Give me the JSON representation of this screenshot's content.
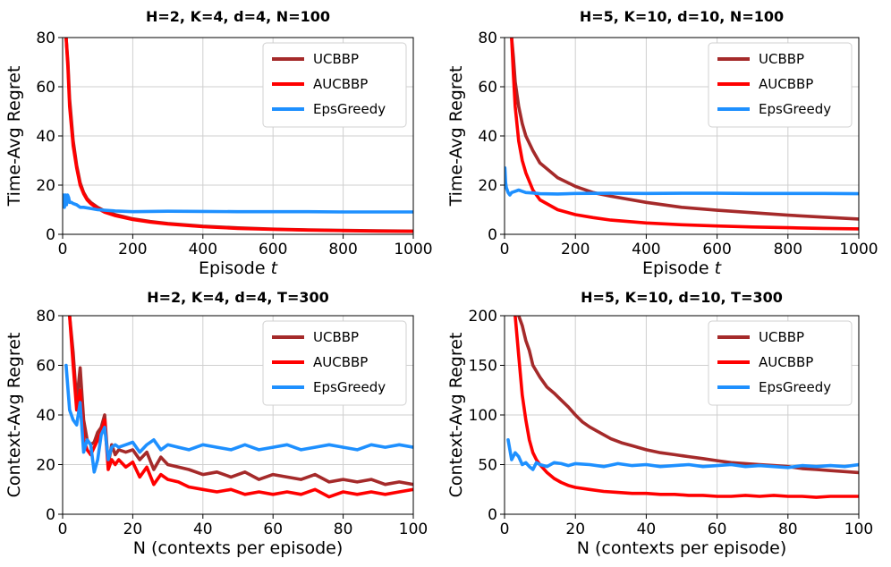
{
  "colors": {
    "UCBBP": "#a52a2a",
    "AUCBBP": "#ff0000",
    "EpsGreedy": "#1e90ff"
  },
  "chart_data": [
    {
      "type": "line",
      "title": "H=2, K=4, d=4, N=100",
      "xlabel": "Episode",
      "xlabel_var": "t",
      "ylabel": "Time-Avg Regret",
      "xlim": [
        0,
        1000
      ],
      "ylim": [
        0,
        80
      ],
      "xticks": [
        0,
        200,
        400,
        600,
        800,
        1000
      ],
      "yticks": [
        0,
        20,
        40,
        60,
        80
      ],
      "legend_pos": "top-right",
      "series": [
        {
          "name": "UCBBP",
          "x": [
            10,
            15,
            20,
            30,
            40,
            50,
            60,
            70,
            80,
            100,
            120,
            150,
            200,
            250,
            300,
            400,
            500,
            600,
            700,
            800,
            900,
            1000
          ],
          "y": [
            80,
            70,
            55,
            38,
            28,
            21,
            17,
            14.5,
            13,
            11,
            9.5,
            8,
            6.3,
            5.2,
            4.4,
            3.3,
            2.6,
            2.1,
            1.8,
            1.6,
            1.4,
            1.3
          ]
        },
        {
          "name": "AUCBBP",
          "x": [
            10,
            15,
            20,
            30,
            40,
            50,
            60,
            70,
            80,
            100,
            120,
            150,
            200,
            250,
            300,
            400,
            500,
            600,
            700,
            800,
            900,
            1000
          ],
          "y": [
            80,
            68,
            52,
            36,
            27,
            20,
            16.5,
            14,
            12.5,
            10.5,
            9,
            7.6,
            6,
            5,
            4.2,
            3.1,
            2.4,
            2,
            1.7,
            1.5,
            1.3,
            1.2
          ]
        },
        {
          "name": "EpsGreedy",
          "x": [
            2,
            5,
            8,
            11,
            14,
            17,
            20,
            25,
            30,
            40,
            50,
            60,
            80,
            100,
            150,
            200,
            250,
            300,
            400,
            500,
            600,
            700,
            800,
            900,
            1000
          ],
          "y": [
            16,
            11,
            16,
            12,
            16,
            15,
            13,
            13,
            12.5,
            12,
            11,
            11,
            10.5,
            10,
            9.5,
            9.2,
            9.3,
            9.4,
            9.3,
            9.2,
            9.2,
            9.2,
            9.1,
            9.1,
            9.1
          ]
        }
      ]
    },
    {
      "type": "line",
      "title": "H=5, K=10, d=10, N=100",
      "xlabel": "Episode",
      "xlabel_var": "t",
      "ylabel": "Time-Avg Regret",
      "xlim": [
        0,
        1000
      ],
      "ylim": [
        0,
        80
      ],
      "xticks": [
        0,
        200,
        400,
        600,
        800,
        1000
      ],
      "yticks": [
        0,
        20,
        40,
        60,
        80
      ],
      "legend_pos": "top-right",
      "series": [
        {
          "name": "UCBBP",
          "x": [
            20,
            25,
            30,
            40,
            50,
            60,
            80,
            100,
            150,
            200,
            250,
            300,
            400,
            500,
            600,
            700,
            800,
            900,
            1000
          ],
          "y": [
            80,
            72,
            62,
            52,
            45,
            40,
            34,
            29,
            23,
            19.5,
            17,
            15.5,
            13,
            11,
            9.8,
            8.8,
            7.8,
            7,
            6.2
          ]
        },
        {
          "name": "AUCBBP",
          "x": [
            20,
            25,
            30,
            40,
            50,
            60,
            80,
            100,
            150,
            200,
            250,
            300,
            400,
            500,
            600,
            700,
            800,
            900,
            1000
          ],
          "y": [
            80,
            65,
            52,
            38,
            30,
            25,
            18,
            14,
            10,
            8,
            6.8,
            5.8,
            4.6,
            3.9,
            3.4,
            3,
            2.7,
            2.4,
            2.2
          ]
        },
        {
          "name": "EpsGreedy",
          "x": [
            1,
            3,
            5,
            10,
            15,
            20,
            30,
            40,
            50,
            60,
            80,
            100,
            150,
            200,
            300,
            400,
            500,
            600,
            700,
            800,
            900,
            1000
          ],
          "y": [
            27,
            21,
            19,
            17,
            16,
            17,
            17.5,
            18,
            17.5,
            17,
            16.8,
            16.5,
            16.4,
            16.6,
            16.7,
            16.6,
            16.7,
            16.7,
            16.6,
            16.6,
            16.6,
            16.5
          ]
        }
      ]
    },
    {
      "type": "line",
      "title": "H=2, K=4, d=4, T=300",
      "xlabel": "N (contexts per episode)",
      "ylabel": "Context-Avg Regret",
      "xlim": [
        0,
        100
      ],
      "ylim": [
        0,
        80
      ],
      "xticks": [
        0,
        20,
        40,
        60,
        80,
        100
      ],
      "yticks": [
        0,
        20,
        40,
        60,
        80
      ],
      "legend_pos": "top-right",
      "series": [
        {
          "name": "UCBBP",
          "x": [
            2,
            3,
            4,
            5,
            6,
            7,
            8,
            9,
            10,
            11,
            12,
            13,
            14,
            15,
            16,
            18,
            20,
            22,
            24,
            26,
            28,
            30,
            33,
            36,
            40,
            44,
            48,
            52,
            56,
            60,
            64,
            68,
            72,
            76,
            80,
            84,
            88,
            92,
            96,
            100
          ],
          "y": [
            80,
            65,
            45,
            59,
            38,
            30,
            28,
            29,
            33,
            35,
            40,
            20,
            28,
            24,
            26,
            25,
            26,
            22,
            25,
            18,
            23,
            20,
            19,
            18,
            16,
            17,
            15,
            17,
            14,
            16,
            15,
            14,
            16,
            13,
            14,
            13,
            14,
            12,
            13,
            12
          ]
        },
        {
          "name": "AUCBBP",
          "x": [
            2,
            3,
            4,
            5,
            6,
            7,
            8,
            9,
            10,
            11,
            12,
            13,
            14,
            15,
            16,
            18,
            20,
            22,
            24,
            26,
            28,
            30,
            33,
            36,
            40,
            44,
            48,
            52,
            56,
            60,
            64,
            68,
            72,
            76,
            80,
            84,
            88,
            92,
            96,
            100
          ],
          "y": [
            80,
            60,
            42,
            50,
            30,
            26,
            24,
            27,
            30,
            33,
            38,
            18,
            22,
            20,
            22,
            19,
            21,
            15,
            19,
            12,
            16,
            14,
            13,
            11,
            10,
            9,
            10,
            8,
            9,
            8,
            9,
            8,
            10,
            7,
            9,
            8,
            9,
            8,
            9,
            10
          ]
        },
        {
          "name": "EpsGreedy",
          "x": [
            1,
            2,
            3,
            4,
            5,
            6,
            7,
            8,
            9,
            10,
            11,
            12,
            13,
            14,
            15,
            16,
            18,
            20,
            22,
            24,
            26,
            28,
            30,
            33,
            36,
            40,
            44,
            48,
            52,
            56,
            60,
            64,
            68,
            72,
            76,
            80,
            84,
            88,
            92,
            96,
            100
          ],
          "y": [
            60,
            42,
            38,
            36,
            45,
            25,
            30,
            28,
            17,
            22,
            32,
            35,
            22,
            27,
            28,
            27,
            28,
            29,
            25,
            28,
            30,
            26,
            28,
            27,
            26,
            28,
            27,
            26,
            28,
            26,
            27,
            28,
            26,
            27,
            28,
            27,
            26,
            28,
            27,
            28,
            27
          ]
        }
      ]
    },
    {
      "type": "line",
      "title": "H=5, K=10, d=10, T=300",
      "xlabel": "N (contexts per episode)",
      "ylabel": "Context-Avg Regret",
      "xlim": [
        0,
        100
      ],
      "ylim": [
        0,
        200
      ],
      "xticks": [
        0,
        20,
        40,
        60,
        80,
        100
      ],
      "yticks": [
        0,
        50,
        100,
        150,
        200
      ],
      "legend_pos": "top-right",
      "series": [
        {
          "name": "UCBBP",
          "x": [
            4,
            5,
            6,
            7,
            8,
            10,
            12,
            14,
            16,
            18,
            20,
            22,
            24,
            26,
            28,
            30,
            33,
            36,
            40,
            44,
            48,
            52,
            56,
            60,
            64,
            68,
            72,
            76,
            80,
            84,
            88,
            92,
            96,
            100
          ],
          "y": [
            200,
            190,
            175,
            165,
            150,
            138,
            128,
            122,
            115,
            108,
            100,
            93,
            88,
            84,
            80,
            76,
            72,
            69,
            65,
            62,
            60,
            58,
            56,
            54,
            52,
            51,
            50,
            49,
            48,
            46,
            45,
            44,
            43,
            42
          ]
        },
        {
          "name": "AUCBBP",
          "x": [
            3,
            4,
            5,
            6,
            7,
            8,
            9,
            10,
            12,
            14,
            16,
            18,
            20,
            24,
            28,
            32,
            36,
            40,
            44,
            48,
            52,
            56,
            60,
            64,
            68,
            72,
            76,
            80,
            84,
            88,
            92,
            96,
            100
          ],
          "y": [
            200,
            160,
            120,
            95,
            75,
            62,
            55,
            50,
            42,
            36,
            32,
            29,
            27,
            25,
            23,
            22,
            21,
            21,
            20,
            20,
            19,
            19,
            18,
            18,
            19,
            18,
            19,
            18,
            18,
            17,
            18,
            18,
            18
          ]
        },
        {
          "name": "EpsGreedy",
          "x": [
            1,
            2,
            3,
            4,
            5,
            6,
            7,
            8,
            9,
            10,
            12,
            14,
            16,
            18,
            20,
            24,
            28,
            32,
            36,
            40,
            44,
            48,
            52,
            56,
            60,
            64,
            68,
            72,
            76,
            80,
            84,
            88,
            92,
            96,
            100
          ],
          "y": [
            75,
            55,
            62,
            58,
            50,
            52,
            48,
            45,
            52,
            50,
            48,
            52,
            51,
            49,
            51,
            50,
            48,
            51,
            49,
            50,
            48,
            49,
            50,
            48,
            49,
            50,
            48,
            49,
            48,
            47,
            49,
            48,
            49,
            48,
            50
          ]
        }
      ]
    }
  ]
}
